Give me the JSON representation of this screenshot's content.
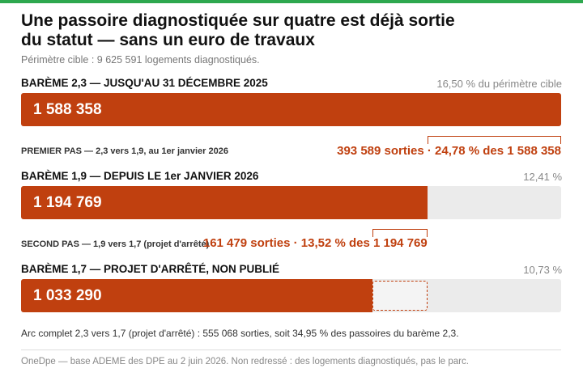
{
  "title_line1": "Une passoire diagnostiquée sur quatre est déjà sortie",
  "title_line2": "du statut — sans un euro de travaux",
  "subtitle": "Périmètre cible : 9 625 591 logements diagnostiqués.",
  "colors": {
    "accent": "#c0400f",
    "track": "#ebebeb",
    "top_rule": "#2ea84f"
  },
  "chart_data": {
    "type": "bar",
    "orientation": "horizontal",
    "perimeter": 9625591,
    "bars": [
      {
        "label": "BARÈME 2,3 — JUSQU'AU 31 DÉCEMBRE 2025",
        "value": 1588358,
        "value_label": "1 588 358",
        "share_label": "16,50 % du périmètre cible"
      },
      {
        "label": "BARÈME 1,9 — DEPUIS LE 1er JANVIER 2026",
        "value": 1194769,
        "value_label": "1 194 769",
        "share_label": "12,41 %"
      },
      {
        "label": "BARÈME 1,7 — PROJET D'ARRÊTÉ, NON PUBLIÉ",
        "value": 1033290,
        "value_label": "1 033 290",
        "share_label": "10,73 %"
      }
    ],
    "steps": [
      {
        "label": "PREMIER PAS — 2,3 vers 1,9, au 1er janvier 2026",
        "exits": 393589,
        "note": "393 589 sorties · 24,78 % des 1 588 358"
      },
      {
        "label": "SECOND PAS — 1,9 vers 1,7 (projet d'arrêté)",
        "exits": 161479,
        "note": "161 479 sorties · 13,52 % des 1 194 769"
      }
    ],
    "note": "Arc complet 2,3 vers 1,7 (projet d'arrêté) : 555 068 sorties, soit 34,95 % des passoires du barème 2,3."
  },
  "source": "OneDpe — base ADEME des DPE au 2 juin 2026. Non redressé : des logements diagnostiqués, pas le parc."
}
